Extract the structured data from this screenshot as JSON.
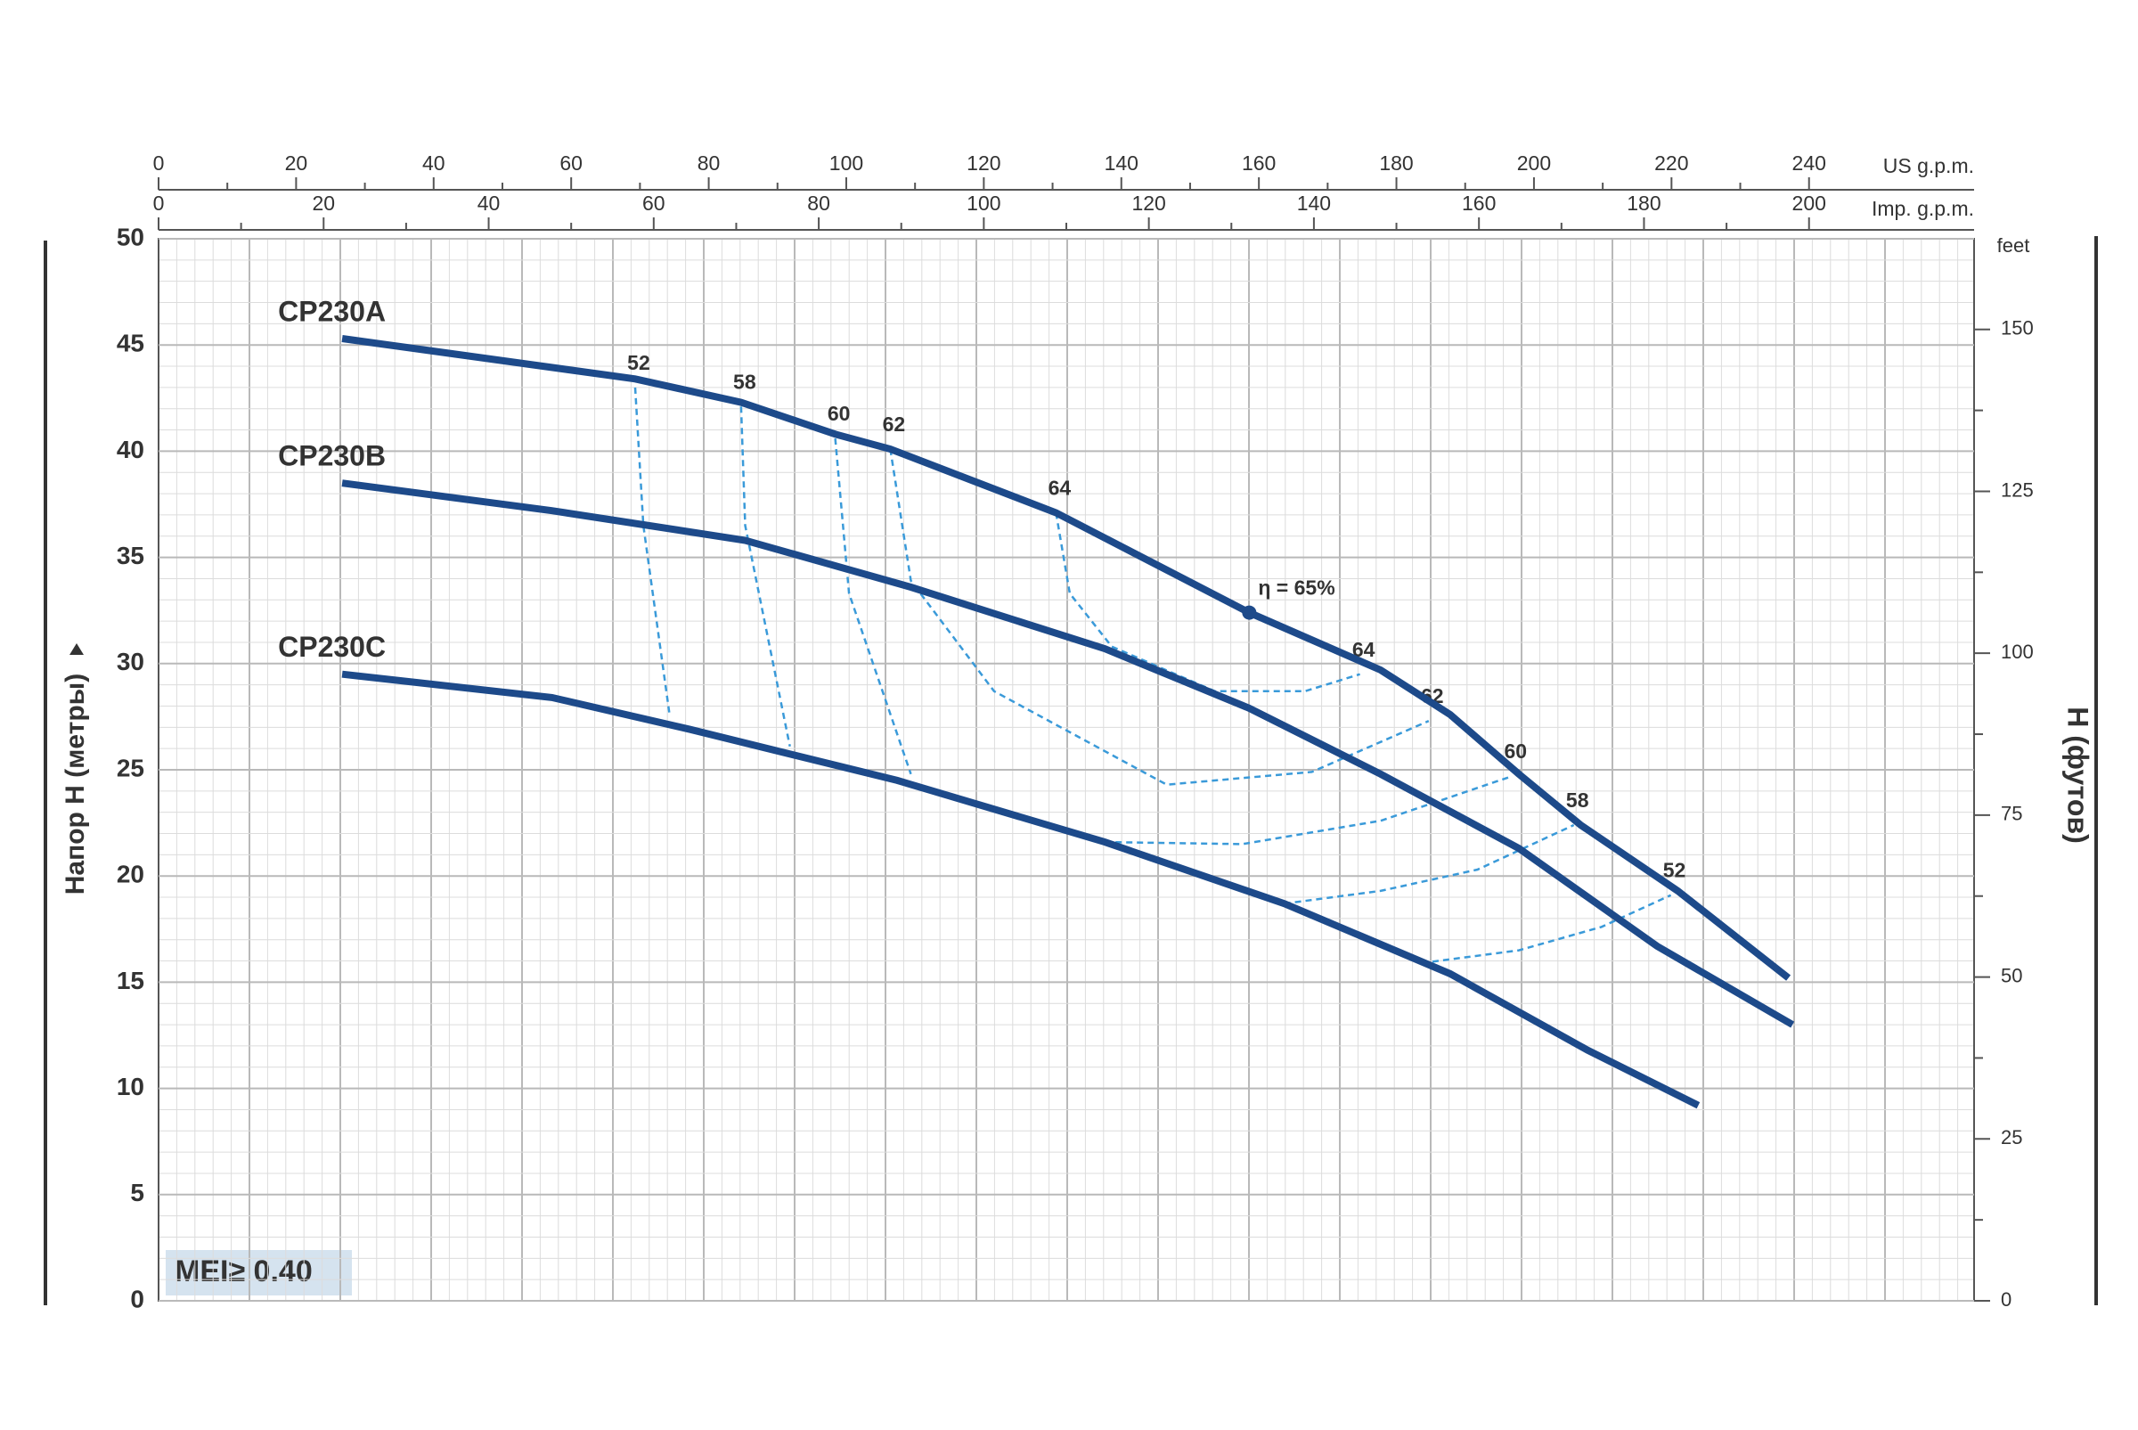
{
  "chart_data": {
    "type": "line",
    "x_axis_label": "US g.p.m.",
    "x2_axis_label": "Imp. g.p.m.",
    "y_axis_label": "Напор H (метры)",
    "y2_axis_label": "H (футов)",
    "y2_unit": "feet",
    "xlim": [
      0,
      264
    ],
    "xticks": [
      0,
      20,
      40,
      60,
      80,
      100,
      120,
      140,
      160,
      180,
      200,
      220,
      240
    ],
    "x2lim": [
      0,
      220
    ],
    "x2ticks": [
      0,
      20,
      40,
      60,
      80,
      100,
      120,
      140,
      160,
      180,
      200
    ],
    "ylim": [
      0,
      50
    ],
    "yticks": [
      0,
      5,
      10,
      15,
      20,
      25,
      30,
      35,
      40,
      45,
      50
    ],
    "y2lim": [
      0,
      164
    ],
    "y2ticks": [
      0,
      25,
      50,
      75,
      100,
      125,
      150
    ],
    "grid": true,
    "series": [
      {
        "name": "CP230A",
        "color": "#1d4a8a",
        "x": [
          26.7,
          69.3,
          84.7,
          98.4,
          106.4,
          130.5,
          158.6,
          177.7,
          187.8,
          197.8,
          206.8,
          220.9,
          237
        ],
        "values": [
          45.3,
          43.4,
          42.3,
          40.8,
          40.1,
          37.1,
          32.4,
          29.7,
          27.6,
          24.8,
          22.4,
          19.3,
          15.2
        ]
      },
      {
        "name": "CP230B",
        "color": "#1d4a8a",
        "x": [
          26.7,
          57.2,
          85.3,
          109.4,
          137.6,
          158.6,
          177.7,
          197.8,
          217.9,
          237.6
        ],
        "values": [
          38.5,
          37.2,
          35.8,
          33.6,
          30.7,
          27.9,
          24.8,
          21.3,
          16.7,
          13.0
        ]
      },
      {
        "name": "CP230C",
        "color": "#1d4a8a",
        "x": [
          26.7,
          57.2,
          77.3,
          107.4,
          137.6,
          163.7,
          187.8,
          207.8,
          223.9
        ],
        "values": [
          29.5,
          28.4,
          26.9,
          24.5,
          21.6,
          18.7,
          15.4,
          11.8,
          9.2
        ]
      }
    ],
    "efficiency_lines": [
      {
        "label": "52",
        "color": "#3a9ad9",
        "x": [
          69.3,
          70.5,
          74.3
        ],
        "values": [
          43.0,
          36.5,
          27.6
        ]
      },
      {
        "label": "58",
        "color": "#3a9ad9",
        "x": [
          84.7,
          85.3,
          91.8
        ],
        "values": [
          42.1,
          36.5,
          26.1
        ]
      },
      {
        "label": "60",
        "color": "#3a9ad9",
        "x": [
          98.4,
          100.4,
          109.4
        ],
        "values": [
          40.6,
          33.3,
          24.8
        ]
      },
      {
        "label": "62",
        "color": "#3a9ad9",
        "x": [
          106.4,
          109.4,
          121.5,
          146.6,
          167.7,
          184.7
        ],
        "values": [
          40.1,
          33.9,
          28.7,
          24.3,
          24.9,
          27.3
        ]
      },
      {
        "label": "64",
        "color": "#3a9ad9",
        "x": [
          130.5,
          132.5,
          138.6,
          153.6,
          166.7,
          174.7
        ],
        "values": [
          37.1,
          33.3,
          30.8,
          28.7,
          28.7,
          29.5
        ]
      },
      {
        "label": "64",
        "color": "#3a9ad9",
        "x": [
          174.7
        ],
        "values": [
          29.5
        ]
      },
      {
        "label": "62",
        "color": "#3a9ad9",
        "x": [
          184.7
        ],
        "values": [
          27.3
        ]
      },
      {
        "label": "60",
        "color": "#3a9ad9",
        "x": [
          137.6,
          157.6,
          177.7,
          196.8
        ],
        "values": [
          21.6,
          21.5,
          22.6,
          24.7
        ]
      },
      {
        "label": "58",
        "color": "#3a9ad9",
        "x": [
          163.7,
          177.7,
          191.8,
          205.8
        ],
        "values": [
          18.7,
          19.3,
          20.3,
          22.4
        ]
      },
      {
        "label": "52",
        "color": "#3a9ad9",
        "x": [
          183.7,
          197.8,
          209.8,
          219.9
        ],
        "values": [
          15.9,
          16.5,
          17.6,
          19.1
        ]
      }
    ],
    "best_point": {
      "label": "η = 65%",
      "x": 158.6,
      "y": 32.4
    },
    "annotation": "MEI≥ 0.40"
  }
}
